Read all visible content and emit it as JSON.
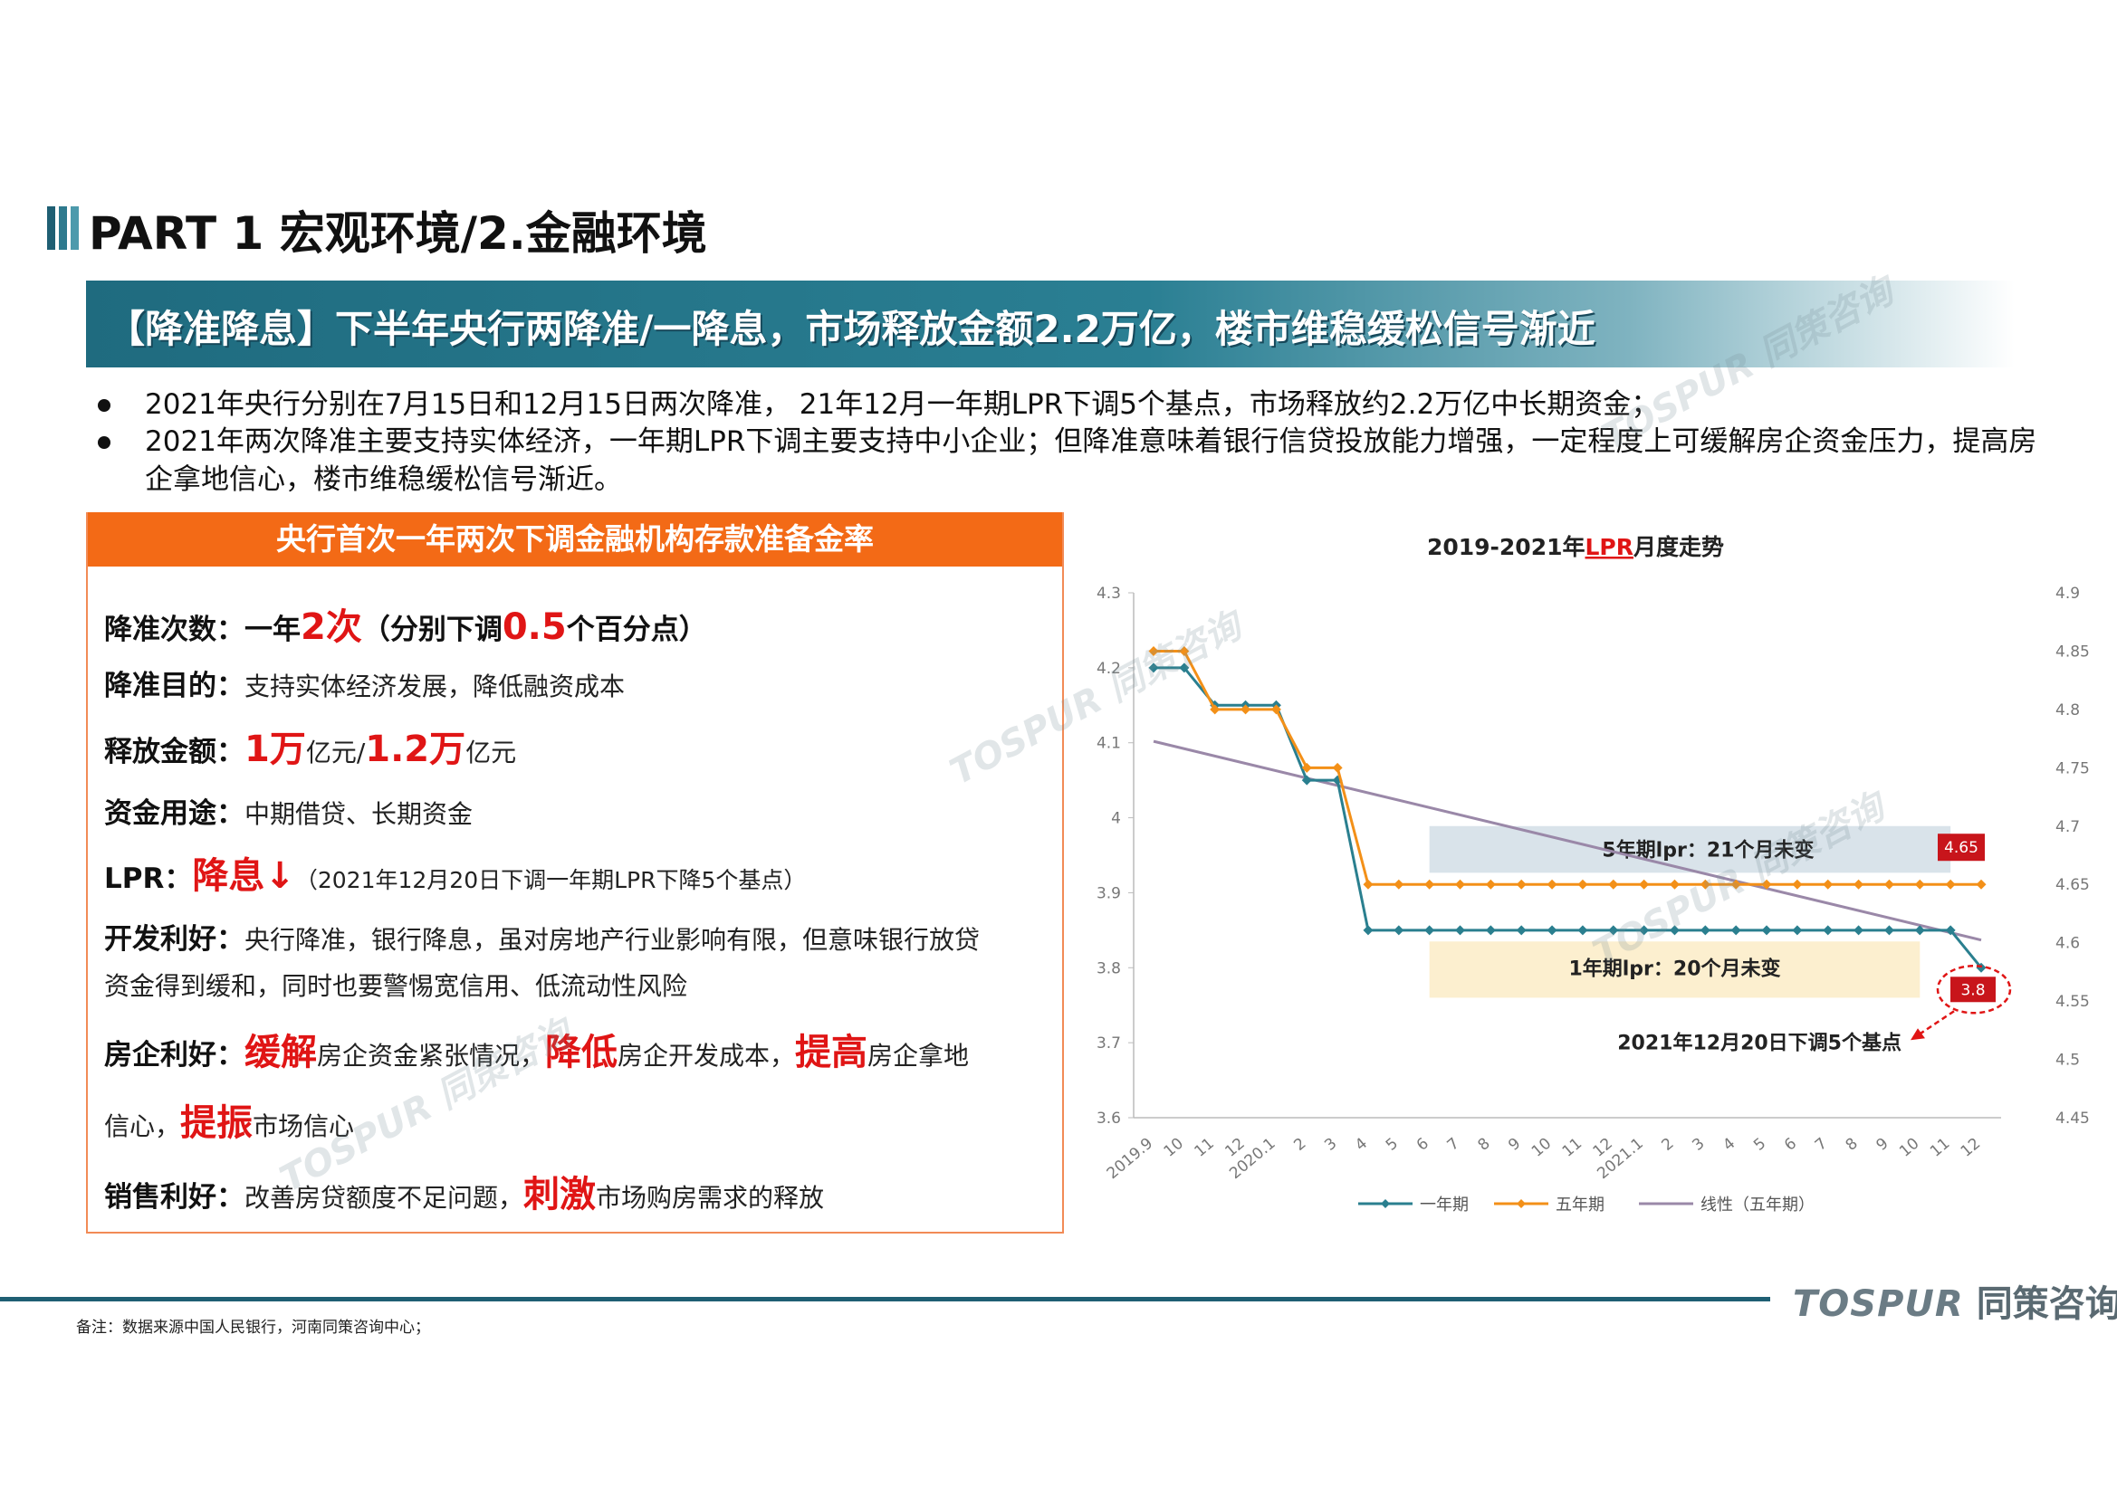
{
  "header": {
    "title": "PART 1 宏观环境/2.金融环境",
    "headline": "【降准降息】下半年央行两降准/一降息，市场释放金额2.2万亿，楼市维稳缓松信号渐近"
  },
  "bullets": [
    "2021年央行分别在7月15日和12月15日两次降准， 21年12月一年期LPR下调5个基点，市场释放约2.2万亿中长期资金；",
    "2021年两次降准主要支持实体经济，一年期LPR下调主要支持中小企业；但降准意味着银行信贷投放能力增强，一定程度上可缓解房企资金压力，提高房企拿地信心，楼市维稳缓松信号渐近。"
  ],
  "card": {
    "header": "央行首次一年两次下调金融机构存款准备金率",
    "r1": {
      "label": "降准次数：",
      "a": "一年",
      "b": "2次",
      "c": "（分别下调",
      "d": "0.5",
      "e": "个百分点）"
    },
    "r2": {
      "label": "降准目的：",
      "text": "支持实体经济发展，降低融资成本"
    },
    "r3": {
      "label": "释放金额：",
      "a": "1万",
      "b": "亿元/",
      "c": "1.2万",
      "d": "亿元"
    },
    "r4": {
      "label": "资金用途：",
      "text": "中期借贷、长期资金"
    },
    "r5": {
      "label": "LPR：",
      "a": "降息",
      "arrow": "↓",
      "b": "（2021年12月20日下调一年期LPR下降5个基点）"
    },
    "r6": {
      "label": "开发利好：",
      "text1": "央行降准，银行降息，虽对房地产行业影响有限，但意味银行放贷",
      "text2": "资金得到缓和，同时也要警惕宽信用、低流动性风险"
    },
    "r7": {
      "label": "房企利好：",
      "a": "缓解",
      "b": "房企资金紧张情况，",
      "c": "降低",
      "d": "房企开发成本，",
      "e": "提高",
      "f": "房企拿地",
      "g": "信心，",
      "h": "提振",
      "i": "市场信心"
    },
    "r8": {
      "label": "销售利好：",
      "a": "改善房贷额度不足问题，",
      "b": "刺激",
      "c": "市场购房需求的释放"
    }
  },
  "chart_data": {
    "type": "line",
    "title_pre": "2019-2021年",
    "title_em": "LPR",
    "title_post": "月度走势",
    "categories": [
      "2019.9",
      "10",
      "11",
      "12",
      "2020.1",
      "2",
      "3",
      "4",
      "5",
      "6",
      "7",
      "8",
      "9",
      "10",
      "11",
      "12",
      "2021.1",
      "2",
      "3",
      "4",
      "5",
      "6",
      "7",
      "8",
      "9",
      "10",
      "11",
      "12"
    ],
    "y_left": {
      "min": 3.6,
      "max": 4.3,
      "ticks": [
        "3.6",
        "3.7",
        "3.8",
        "3.9",
        "4",
        "4.1",
        "4.2",
        "4.3"
      ]
    },
    "y_right": {
      "min": 4.45,
      "max": 4.9,
      "ticks": [
        "4.45",
        "4.5",
        "4.55",
        "4.6",
        "4.65",
        "4.7",
        "4.75",
        "4.8",
        "4.85",
        "4.9"
      ]
    },
    "series": [
      {
        "name": "一年期",
        "axis": "left",
        "color": "#2a7f8f",
        "values": [
          4.2,
          4.2,
          4.15,
          4.15,
          4.15,
          4.05,
          4.05,
          3.85,
          3.85,
          3.85,
          3.85,
          3.85,
          3.85,
          3.85,
          3.85,
          3.85,
          3.85,
          3.85,
          3.85,
          3.85,
          3.85,
          3.85,
          3.85,
          3.85,
          3.85,
          3.85,
          3.85,
          3.8
        ]
      },
      {
        "name": "五年期",
        "axis": "right",
        "color": "#f39018",
        "values": [
          4.85,
          4.85,
          4.8,
          4.8,
          4.8,
          4.75,
          4.75,
          4.65,
          4.65,
          4.65,
          4.65,
          4.65,
          4.65,
          4.65,
          4.65,
          4.65,
          4.65,
          4.65,
          4.65,
          4.65,
          4.65,
          4.65,
          4.65,
          4.65,
          4.65,
          4.65,
          4.65,
          4.65
        ]
      },
      {
        "name": "线性（五年期）",
        "axis": "right",
        "color": "#9a88a8",
        "trend": true
      }
    ],
    "annotations": {
      "five_year_box": "5年期lpr：21个月未变",
      "one_year_box": "1年期lpr：20个月未变",
      "badge_465": "4.65",
      "badge_38": "3.8",
      "cut_note": "2021年12月20日下调5个基点"
    },
    "legend": "bottom"
  },
  "footer": {
    "note": "备注：数据来源中国人民银行，河南同策咨询中心；",
    "brand_logo": "TOSPUR",
    "brand_name": "同策咨询"
  },
  "watermark": {
    "text": "TOSPUR 同策咨询"
  },
  "colors": {
    "teal": "#1f6b7f",
    "orange": "#f36a16",
    "red": "#e01515",
    "badge": "#c8151b"
  }
}
